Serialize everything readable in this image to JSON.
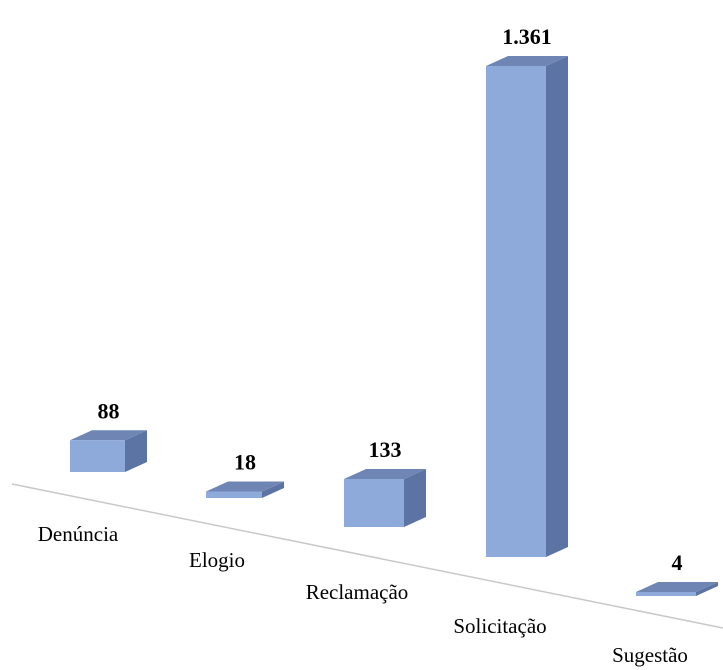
{
  "chart_data": {
    "type": "bar",
    "categories": [
      "Denúncia",
      "Elogio",
      "Reclamação",
      "Solicitação",
      "Sugestão"
    ],
    "values": [
      88,
      18,
      133,
      1361,
      4
    ],
    "value_labels": [
      "88",
      "18",
      "133",
      "1.361",
      "4"
    ],
    "title": "",
    "xlabel": "",
    "ylabel": "",
    "ylim": [
      0,
      1361
    ],
    "grid": false,
    "legend": "none",
    "style": "3d-column"
  },
  "colors": {
    "front": "#8eaadb",
    "top": "#6f86b5",
    "side": "#5c74a4",
    "baseline": "#c8c8c8"
  }
}
